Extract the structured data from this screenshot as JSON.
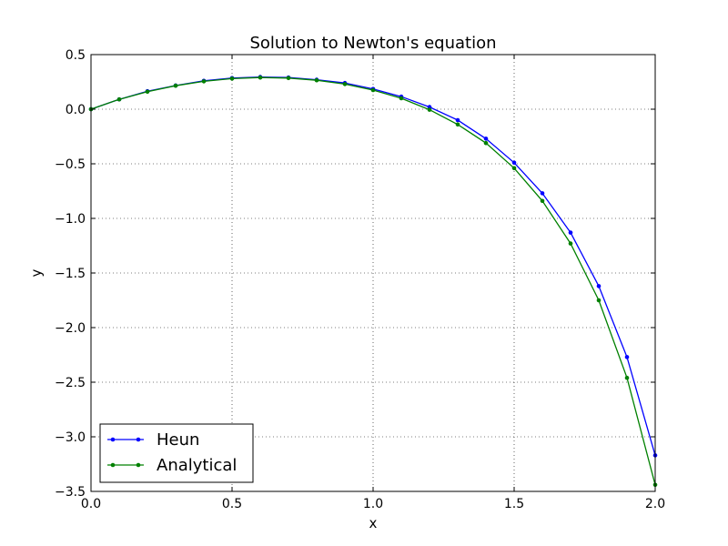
{
  "chart_data": {
    "type": "line",
    "title": "Solution to Newton's equation",
    "xlabel": "x",
    "ylabel": "y",
    "xlim": [
      0.0,
      2.0
    ],
    "ylim": [
      -3.5,
      0.5
    ],
    "xticks": [
      "0.0",
      "0.5",
      "1.0",
      "1.5",
      "2.0"
    ],
    "yticks": [
      "0.5",
      "0.0",
      "−0.5",
      "−1.0",
      "−1.5",
      "−2.0",
      "−2.5",
      "−3.0",
      "−3.5"
    ],
    "grid": true,
    "legend_position": "lower-left",
    "x": [
      0.0,
      0.1,
      0.2,
      0.3,
      0.4,
      0.5,
      0.6,
      0.7,
      0.8,
      0.9,
      1.0,
      1.1,
      1.2,
      1.3,
      1.4,
      1.5,
      1.6,
      1.7,
      1.8,
      1.9,
      2.0
    ],
    "series": [
      {
        "name": "Heun",
        "color": "#0000ff",
        "values": [
          0.0,
          0.09,
          0.165,
          0.217,
          0.26,
          0.285,
          0.295,
          0.29,
          0.27,
          0.24,
          0.185,
          0.115,
          0.02,
          -0.1,
          -0.27,
          -0.49,
          -0.77,
          -1.13,
          -1.62,
          -2.27,
          -3.17
        ]
      },
      {
        "name": "Analytical",
        "color": "#008000",
        "values": [
          0.0,
          0.09,
          0.16,
          0.215,
          0.255,
          0.28,
          0.29,
          0.285,
          0.265,
          0.23,
          0.175,
          0.1,
          -0.005,
          -0.14,
          -0.31,
          -0.54,
          -0.84,
          -1.23,
          -1.75,
          -2.46,
          -3.44
        ]
      }
    ]
  }
}
